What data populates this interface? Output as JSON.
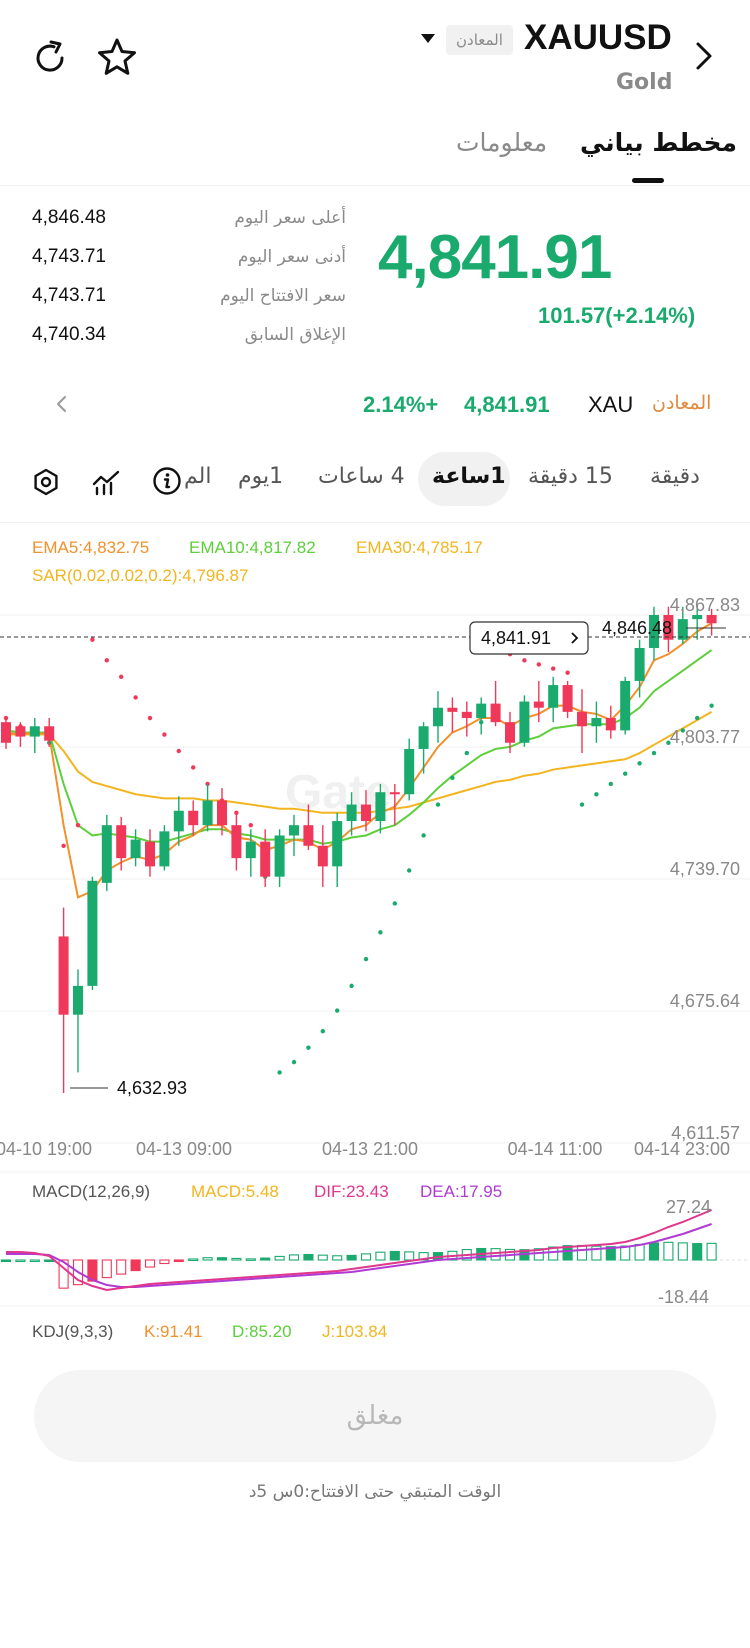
{
  "header": {
    "symbol": "XAUUSD",
    "subtitle": "Gold",
    "category_badge": "المعادن",
    "icons": {
      "back": "chevron-left-icon",
      "dropdown": "caret-down-icon",
      "refresh": "refresh-icon",
      "favorite": "star-icon"
    }
  },
  "tabs": [
    {
      "label": "مخطط بياني",
      "active": true
    },
    {
      "label": "معلومات",
      "active": false
    }
  ],
  "quote": {
    "price": "4,841.91",
    "change": "101.57(+2.14%)",
    "stats": [
      {
        "label": "أعلى سعر اليوم",
        "value": "4,846.48"
      },
      {
        "label": "أدنى سعر اليوم",
        "value": "4,743.71"
      },
      {
        "label": "سعر الافتتاح اليوم",
        "value": "4,743.71"
      },
      {
        "label": "الإغلاق السابق",
        "value": "4,740.34"
      }
    ],
    "up_color": "#1aaa6e"
  },
  "ticker": {
    "category": "المعادن",
    "symbol": "XAU",
    "price": "4,841.91",
    "change": "2.14%+"
  },
  "intervals": {
    "items": [
      "دقيقة",
      "15 دقيقة",
      "1ساعة",
      "4 ساعات",
      "1يوم",
      "الم"
    ],
    "selected": "1ساعة"
  },
  "indicators": {
    "ema5": "EMA5:4,832.75",
    "ema10": "EMA10:4,817.82",
    "ema30": "EMA30:4,785.17",
    "sar": "SAR(0.02,0.02,0.2):4,796.87",
    "macd_label": "MACD(12,26,9)",
    "macd": "MACD:5.48",
    "dif": "DIF:23.43",
    "dea": "DEA:17.95",
    "kdj_label": "KDJ(9,3,3)",
    "k": "K:91.41",
    "d": "D:85.20",
    "j": "J:103.84",
    "colors": {
      "ema5": "#f0912c",
      "ema10": "#5ccf3a",
      "ema30": "#f2b51f",
      "sar": "#f2b51f",
      "macd": "#f2b51f",
      "dif": "#e0368c",
      "dea": "#b03ad4",
      "up": "#1aaa6e",
      "down": "#f0385a"
    }
  },
  "chart_data": {
    "type": "candlestick",
    "y_ticks": [
      "4,867.83",
      "4,803.77",
      "4,739.70",
      "4,675.64",
      "4,611.57"
    ],
    "x_ticks": [
      "04-10 19:00",
      "04-13 09:00",
      "04-13 21:00",
      "04-14 11:00",
      "04-14 23:00"
    ],
    "ylim": [
      4611.57,
      4867.83
    ],
    "current_price_label": "4,841.91",
    "high_marker": "4,846.48",
    "low_marker": "4,632.93",
    "watermark": "Gate",
    "candles": [
      [
        4810,
        4812,
        4797,
        4800
      ],
      [
        4808,
        4810,
        4798,
        4803
      ],
      [
        4803,
        4812,
        4795,
        4808
      ],
      [
        4808,
        4812,
        4798,
        4801
      ],
      [
        4706,
        4720,
        4630,
        4668
      ],
      [
        4668,
        4690,
        4640,
        4682
      ],
      [
        4682,
        4735,
        4680,
        4733
      ],
      [
        4732,
        4765,
        4728,
        4760
      ],
      [
        4760,
        4764,
        4738,
        4744
      ],
      [
        4744,
        4758,
        4740,
        4753
      ],
      [
        4752,
        4758,
        4735,
        4740
      ],
      [
        4740,
        4760,
        4738,
        4757
      ],
      [
        4757,
        4774,
        4750,
        4767
      ],
      [
        4767,
        4772,
        4755,
        4760
      ],
      [
        4760,
        4780,
        4757,
        4772
      ],
      [
        4772,
        4778,
        4755,
        4760
      ],
      [
        4760,
        4766,
        4738,
        4744
      ],
      [
        4744,
        4758,
        4735,
        4752
      ],
      [
        4752,
        4758,
        4730,
        4735
      ],
      [
        4735,
        4758,
        4730,
        4755
      ],
      [
        4755,
        4765,
        4745,
        4760
      ],
      [
        4760,
        4770,
        4748,
        4750
      ],
      [
        4750,
        4760,
        4730,
        4740
      ],
      [
        4740,
        4766,
        4730,
        4762
      ],
      [
        4762,
        4776,
        4755,
        4770
      ],
      [
        4770,
        4777,
        4757,
        4762
      ],
      [
        4762,
        4780,
        4756,
        4776
      ],
      [
        4776,
        4780,
        4760,
        4775
      ],
      [
        4775,
        4802,
        4772,
        4797
      ],
      [
        4797,
        4810,
        4785,
        4808
      ],
      [
        4808,
        4825,
        4800,
        4817
      ],
      [
        4817,
        4822,
        4805,
        4815
      ],
      [
        4815,
        4820,
        4803,
        4812
      ],
      [
        4812,
        4822,
        4804,
        4819
      ],
      [
        4819,
        4830,
        4808,
        4810
      ],
      [
        4810,
        4815,
        4795,
        4800
      ],
      [
        4800,
        4823,
        4798,
        4820
      ],
      [
        4820,
        4830,
        4810,
        4817
      ],
      [
        4817,
        4832,
        4810,
        4828
      ],
      [
        4828,
        4830,
        4812,
        4815
      ],
      [
        4815,
        4826,
        4795,
        4808
      ],
      [
        4808,
        4820,
        4800,
        4812
      ],
      [
        4812,
        4818,
        4802,
        4806
      ],
      [
        4806,
        4832,
        4804,
        4830
      ],
      [
        4830,
        4850,
        4822,
        4846
      ],
      [
        4846,
        4866,
        4840,
        4862
      ],
      [
        4862,
        4866,
        4844,
        4850
      ],
      [
        4850,
        4866,
        4848,
        4860
      ],
      [
        4860,
        4867,
        4850,
        4862
      ],
      [
        4862,
        4865,
        4852,
        4858
      ]
    ],
    "sar": [
      4812,
      4808,
      4805,
      4800,
      4750,
      4760,
      4850,
      4840,
      4832,
      4822,
      4812,
      4804,
      4796,
      4788,
      4780,
      4772,
      4766,
      4760,
      4735,
      4640,
      4645,
      4652,
      4660,
      4670,
      4682,
      4695,
      4708,
      4722,
      4738,
      4755,
      4770,
      4783,
      4795,
      4810,
      4845,
      4843,
      4840,
      4838,
      4836,
      4834,
      4770,
      4775,
      4780,
      4785,
      4790,
      4795,
      4800,
      4806,
      4812,
      4818
    ],
    "ema5": [
      4805,
      4804,
      4805,
      4804,
      4760,
      4725,
      4728,
      4738,
      4742,
      4745,
      4743,
      4746,
      4752,
      4755,
      4760,
      4760,
      4754,
      4753,
      4748,
      4750,
      4753,
      4752,
      4748,
      4752,
      4758,
      4760,
      4766,
      4769,
      4778,
      4788,
      4798,
      4805,
      4808,
      4812,
      4812,
      4808,
      4812,
      4814,
      4818,
      4818,
      4815,
      4814,
      4811,
      4818,
      4827,
      4840,
      4843,
      4848,
      4854,
      4858
    ],
    "ema10": [
      4806,
      4805,
      4805,
      4805,
      4780,
      4760,
      4755,
      4756,
      4755,
      4754,
      4752,
      4752,
      4754,
      4756,
      4758,
      4758,
      4756,
      4755,
      4753,
      4753,
      4753,
      4753,
      4751,
      4752,
      4754,
      4755,
      4758,
      4760,
      4765,
      4771,
      4778,
      4784,
      4789,
      4794,
      4797,
      4798,
      4801,
      4803,
      4807,
      4808,
      4809,
      4809,
      4809,
      4812,
      4817,
      4825,
      4830,
      4835,
      4840,
      4845
    ],
    "ema30": [
      4804,
      4804,
      4804,
      4804,
      4796,
      4786,
      4781,
      4779,
      4777,
      4775,
      4774,
      4773,
      4773,
      4773,
      4772,
      4772,
      4771,
      4770,
      4769,
      4768,
      4768,
      4767,
      4766,
      4766,
      4766,
      4766,
      4767,
      4768,
      4769,
      4771,
      4773,
      4775,
      4777,
      4779,
      4781,
      4782,
      4784,
      4785,
      4787,
      4788,
      4789,
      4790,
      4791,
      4792,
      4795,
      4799,
      4803,
      4807,
      4811,
      4815
    ]
  },
  "macd_chart": {
    "y_ticks": [
      "27.24",
      "-18.44"
    ]
  },
  "footer": {
    "status_button": "مغلق",
    "countdown": "الوقت المتبقي حتى الافتتاح:0س 5د"
  }
}
